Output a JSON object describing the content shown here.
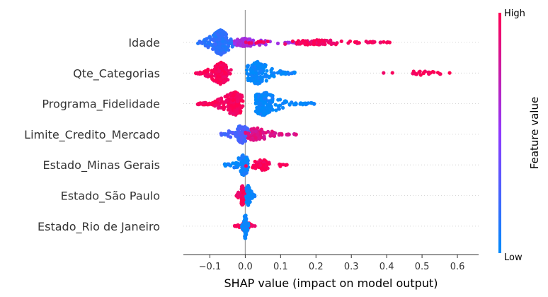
{
  "chart_data": {
    "type": "scatter",
    "title": "",
    "xlabel": "SHAP value (impact on model output)",
    "xlim": [
      -0.175,
      0.66
    ],
    "xticks": [
      -0.1,
      0.0,
      0.1,
      0.2,
      0.3,
      0.4,
      0.5,
      0.6
    ],
    "xtick_labels": [
      "−0.1",
      "0.0",
      "0.1",
      "0.2",
      "0.3",
      "0.4",
      "0.5",
      "0.6"
    ],
    "colorbar": {
      "title": "Feature value",
      "high_label": "High",
      "low_label": "Low",
      "high_color": "#ff0052",
      "low_color": "#008bfb"
    },
    "features": [
      {
        "name": "Idade",
        "groups": [
          {
            "min": -0.135,
            "max": -0.03,
            "center": -0.07,
            "height": 0.95,
            "count": 220,
            "color": 0.15
          },
          {
            "min": -0.03,
            "max": 0.2,
            "center": 0.0,
            "height": 0.3,
            "count": 120,
            "color": 0.6
          },
          {
            "min": 0.0,
            "max": 0.42,
            "center": 0.2,
            "height": 0.2,
            "count": 110,
            "color": 0.95
          }
        ]
      },
      {
        "name": "Qte_Categorias",
        "groups": [
          {
            "min": -0.14,
            "max": -0.04,
            "center": -0.07,
            "height": 0.85,
            "count": 190,
            "color": 0.97
          },
          {
            "min": 0.0,
            "max": 0.14,
            "center": 0.035,
            "height": 0.85,
            "count": 190,
            "color": 0.03
          },
          {
            "min": 0.37,
            "max": 0.62,
            "center": 0.5,
            "height": 0.15,
            "count": 25,
            "color": 0.98
          }
        ]
      },
      {
        "name": "Programa_Fidelidade",
        "groups": [
          {
            "min": -0.135,
            "max": -0.005,
            "center": -0.03,
            "height": 0.9,
            "count": 230,
            "color": 0.97
          },
          {
            "min": 0.03,
            "max": 0.2,
            "center": 0.05,
            "height": 0.9,
            "count": 200,
            "color": 0.03
          }
        ]
      },
      {
        "name": "Limite_Credito_Mercado",
        "groups": [
          {
            "min": -0.07,
            "max": 0.03,
            "center": -0.01,
            "height": 0.7,
            "count": 110,
            "color": 0.25
          },
          {
            "min": 0.0,
            "max": 0.145,
            "center": 0.03,
            "height": 0.5,
            "count": 90,
            "color": 0.85
          }
        ]
      },
      {
        "name": "Estado_Minas Gerais",
        "groups": [
          {
            "min": -0.06,
            "max": 0.01,
            "center": -0.005,
            "height": 0.8,
            "count": 100,
            "color": 0.05
          },
          {
            "min": 0.0,
            "max": 0.125,
            "center": 0.05,
            "height": 0.4,
            "count": 80,
            "color": 0.97
          }
        ]
      },
      {
        "name": "Estado_São Paulo",
        "groups": [
          {
            "min": -0.025,
            "max": 0.005,
            "center": -0.008,
            "height": 0.75,
            "count": 90,
            "color": 0.97
          },
          {
            "min": 0.0,
            "max": 0.03,
            "center": 0.008,
            "height": 0.75,
            "count": 90,
            "color": 0.03
          }
        ]
      },
      {
        "name": "Estado_Rio de Janeiro",
        "groups": [
          {
            "min": -0.03,
            "max": 0.03,
            "center": 0.0,
            "height": 0.35,
            "count": 60,
            "color": 0.97
          },
          {
            "min": -0.01,
            "max": 0.01,
            "center": 0.0,
            "height": 0.95,
            "count": 100,
            "color": 0.03
          }
        ]
      }
    ]
  }
}
